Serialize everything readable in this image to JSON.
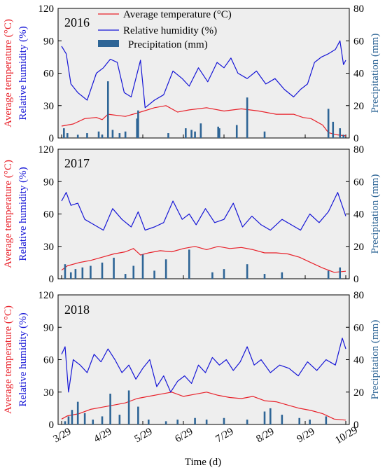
{
  "colors": {
    "temperature": "#e8212a",
    "humidity": "#1515d6",
    "precipitation": "#2e6596",
    "plot_bg": "#eeeeee"
  },
  "axes": {
    "left_label_temp": "Average temperature (°C)",
    "left_label_rh": "Relative humidity (%)",
    "right_label": "Precipitation (mm)",
    "x_label": "Time (d)",
    "x_ticks": [
      "3/29",
      "4/29",
      "5/29",
      "6/29",
      "7/29",
      "8/29",
      "9/29",
      "10/29"
    ],
    "left_ticks": [
      "0",
      "30",
      "60",
      "90",
      "120"
    ],
    "right_ticks": [
      "0",
      "20",
      "40",
      "60",
      "80"
    ]
  },
  "legend": {
    "temperature": "Average temperature (°C)",
    "humidity": "Relative humidity (%)",
    "precipitation": "Precipitation (mm)"
  },
  "chart_data": [
    {
      "type": "line",
      "title": "2016",
      "x_range": [
        "3/29",
        "10/29"
      ],
      "ylim_left": [
        0,
        120
      ],
      "ylim_right": [
        0,
        80
      ],
      "series": [
        {
          "name": "Average temperature (°C)",
          "axis": "left",
          "points": [
            [
              0,
              11
            ],
            [
              10,
              13
            ],
            [
              20,
              18
            ],
            [
              30,
              19
            ],
            [
              35,
              17
            ],
            [
              40,
              22
            ],
            [
              55,
              20
            ],
            [
              65,
              23
            ],
            [
              80,
              28
            ],
            [
              90,
              30
            ],
            [
              100,
              24
            ],
            [
              110,
              26
            ],
            [
              125,
              28
            ],
            [
              140,
              25
            ],
            [
              155,
              27
            ],
            [
              170,
              25
            ],
            [
              185,
              22
            ],
            [
              200,
              22
            ],
            [
              208,
              19
            ],
            [
              215,
              18
            ],
            [
              225,
              12
            ],
            [
              230,
              5
            ],
            [
              237,
              3
            ],
            [
              245,
              2
            ]
          ]
        },
        {
          "name": "Relative humidity (%)",
          "axis": "left",
          "points": [
            [
              0,
              85
            ],
            [
              4,
              78
            ],
            [
              8,
              50
            ],
            [
              14,
              42
            ],
            [
              22,
              35
            ],
            [
              30,
              60
            ],
            [
              36,
              65
            ],
            [
              42,
              73
            ],
            [
              48,
              70
            ],
            [
              54,
              42
            ],
            [
              60,
              38
            ],
            [
              68,
              72
            ],
            [
              72,
              28
            ],
            [
              80,
              35
            ],
            [
              88,
              40
            ],
            [
              96,
              62
            ],
            [
              104,
              55
            ],
            [
              110,
              48
            ],
            [
              118,
              65
            ],
            [
              126,
              52
            ],
            [
              134,
              70
            ],
            [
              140,
              65
            ],
            [
              146,
              74
            ],
            [
              152,
              60
            ],
            [
              160,
              55
            ],
            [
              168,
              62
            ],
            [
              176,
              50
            ],
            [
              184,
              55
            ],
            [
              192,
              45
            ],
            [
              200,
              38
            ],
            [
              206,
              45
            ],
            [
              212,
              50
            ],
            [
              218,
              70
            ],
            [
              224,
              75
            ],
            [
              230,
              78
            ],
            [
              236,
              82
            ],
            [
              240,
              90
            ],
            [
              243,
              68
            ],
            [
              245,
              72
            ]
          ]
        },
        {
          "name": "Precipitation (mm)",
          "axis": "right",
          "type": "bar",
          "points": [
            [
              2,
              6
            ],
            [
              5,
              3
            ],
            [
              14,
              2
            ],
            [
              22,
              3
            ],
            [
              32,
              4
            ],
            [
              35,
              2
            ],
            [
              40,
              35
            ],
            [
              44,
              5
            ],
            [
              50,
              3
            ],
            [
              55,
              4
            ],
            [
              65,
              12
            ],
            [
              66,
              17
            ],
            [
              92,
              3
            ],
            [
              107,
              6
            ],
            [
              112,
              5
            ],
            [
              115,
              4
            ],
            [
              120,
              9
            ],
            [
              135,
              7
            ],
            [
              136,
              6
            ],
            [
              151,
              8
            ],
            [
              160,
              25
            ],
            [
              175,
              4
            ],
            [
              230,
              18
            ],
            [
              234,
              10
            ],
            [
              240,
              6
            ],
            [
              243,
              2
            ]
          ]
        }
      ]
    },
    {
      "type": "line",
      "title": "2017",
      "x_range": [
        "3/29",
        "10/29"
      ],
      "ylim_left": [
        0,
        120
      ],
      "ylim_right": [
        0,
        80
      ],
      "series": [
        {
          "name": "Average temperature (°C)",
          "axis": "left",
          "points": [
            [
              0,
              8
            ],
            [
              5,
              12
            ],
            [
              15,
              15
            ],
            [
              25,
              17
            ],
            [
              35,
              20
            ],
            [
              45,
              23
            ],
            [
              55,
              25
            ],
            [
              62,
              28
            ],
            [
              68,
              22
            ],
            [
              75,
              24
            ],
            [
              85,
              26
            ],
            [
              95,
              25
            ],
            [
              105,
              28
            ],
            [
              115,
              30
            ],
            [
              125,
              27
            ],
            [
              135,
              30
            ],
            [
              145,
              28
            ],
            [
              155,
              29
            ],
            [
              165,
              27
            ],
            [
              175,
              24
            ],
            [
              185,
              24
            ],
            [
              195,
              23
            ],
            [
              205,
              20
            ],
            [
              215,
              15
            ],
            [
              225,
              10
            ],
            [
              235,
              6
            ],
            [
              245,
              7
            ]
          ]
        },
        {
          "name": "Relative humidity (%)",
          "axis": "left",
          "points": [
            [
              0,
              72
            ],
            [
              4,
              80
            ],
            [
              8,
              68
            ],
            [
              14,
              70
            ],
            [
              20,
              55
            ],
            [
              28,
              50
            ],
            [
              36,
              45
            ],
            [
              44,
              65
            ],
            [
              52,
              55
            ],
            [
              60,
              48
            ],
            [
              66,
              62
            ],
            [
              72,
              45
            ],
            [
              80,
              48
            ],
            [
              88,
              52
            ],
            [
              96,
              72
            ],
            [
              104,
              55
            ],
            [
              110,
              60
            ],
            [
              116,
              50
            ],
            [
              124,
              65
            ],
            [
              132,
              52
            ],
            [
              140,
              55
            ],
            [
              148,
              70
            ],
            [
              156,
              48
            ],
            [
              164,
              58
            ],
            [
              172,
              50
            ],
            [
              180,
              45
            ],
            [
              190,
              55
            ],
            [
              198,
              50
            ],
            [
              206,
              45
            ],
            [
              214,
              60
            ],
            [
              222,
              52
            ],
            [
              230,
              62
            ],
            [
              238,
              80
            ],
            [
              245,
              58
            ]
          ]
        },
        {
          "name": "Precipitation (mm)",
          "axis": "right",
          "type": "bar",
          "points": [
            [
              3,
              9
            ],
            [
              8,
              4
            ],
            [
              12,
              6
            ],
            [
              18,
              7
            ],
            [
              25,
              8
            ],
            [
              35,
              10
            ],
            [
              45,
              13
            ],
            [
              55,
              3
            ],
            [
              62,
              8
            ],
            [
              70,
              15
            ],
            [
              80,
              5
            ],
            [
              90,
              12
            ],
            [
              110,
              18
            ],
            [
              130,
              4
            ],
            [
              140,
              6
            ],
            [
              160,
              9
            ],
            [
              175,
              3
            ],
            [
              190,
              4
            ],
            [
              230,
              5
            ],
            [
              240,
              7
            ]
          ]
        }
      ]
    },
    {
      "type": "line",
      "title": "2018",
      "x_range": [
        "3/29",
        "10/29"
      ],
      "ylim_left": [
        0,
        120
      ],
      "ylim_right": [
        0,
        80
      ],
      "series": [
        {
          "name": "Average temperature (°C)",
          "axis": "left",
          "points": [
            [
              0,
              5
            ],
            [
              5,
              8
            ],
            [
              15,
              10
            ],
            [
              25,
              14
            ],
            [
              35,
              16
            ],
            [
              45,
              18
            ],
            [
              55,
              20
            ],
            [
              65,
              24
            ],
            [
              75,
              26
            ],
            [
              85,
              28
            ],
            [
              95,
              30
            ],
            [
              105,
              26
            ],
            [
              115,
              28
            ],
            [
              125,
              30
            ],
            [
              135,
              27
            ],
            [
              145,
              25
            ],
            [
              155,
              24
            ],
            [
              165,
              26
            ],
            [
              175,
              22
            ],
            [
              185,
              21
            ],
            [
              195,
              18
            ],
            [
              205,
              15
            ],
            [
              215,
              13
            ],
            [
              225,
              10
            ],
            [
              235,
              5
            ],
            [
              245,
              4
            ]
          ]
        },
        {
          "name": "Relative humidity (%)",
          "axis": "left",
          "points": [
            [
              0,
              65
            ],
            [
              3,
              72
            ],
            [
              6,
              30
            ],
            [
              10,
              60
            ],
            [
              16,
              55
            ],
            [
              22,
              48
            ],
            [
              28,
              65
            ],
            [
              34,
              58
            ],
            [
              40,
              70
            ],
            [
              46,
              60
            ],
            [
              52,
              48
            ],
            [
              58,
              55
            ],
            [
              64,
              42
            ],
            [
              70,
              52
            ],
            [
              76,
              60
            ],
            [
              82,
              35
            ],
            [
              88,
              45
            ],
            [
              94,
              30
            ],
            [
              100,
              40
            ],
            [
              106,
              45
            ],
            [
              112,
              38
            ],
            [
              118,
              55
            ],
            [
              124,
              48
            ],
            [
              130,
              62
            ],
            [
              136,
              55
            ],
            [
              142,
              60
            ],
            [
              148,
              50
            ],
            [
              154,
              58
            ],
            [
              160,
              72
            ],
            [
              166,
              55
            ],
            [
              172,
              60
            ],
            [
              180,
              48
            ],
            [
              188,
              55
            ],
            [
              196,
              52
            ],
            [
              204,
              45
            ],
            [
              212,
              58
            ],
            [
              220,
              50
            ],
            [
              228,
              60
            ],
            [
              236,
              55
            ],
            [
              242,
              80
            ],
            [
              245,
              70
            ]
          ]
        },
        {
          "name": "Precipitation (mm)",
          "axis": "right",
          "type": "bar",
          "points": [
            [
              3,
              2
            ],
            [
              6,
              5
            ],
            [
              9,
              9
            ],
            [
              14,
              14
            ],
            [
              20,
              7
            ],
            [
              27,
              3
            ],
            [
              35,
              5
            ],
            [
              42,
              19
            ],
            [
              50,
              6
            ],
            [
              58,
              21
            ],
            [
              66,
              11
            ],
            [
              75,
              3
            ],
            [
              90,
              2
            ],
            [
              100,
              3
            ],
            [
              115,
              4
            ],
            [
              125,
              3
            ],
            [
              140,
              4
            ],
            [
              160,
              3
            ],
            [
              175,
              8
            ],
            [
              180,
              10
            ],
            [
              190,
              6
            ],
            [
              205,
              4
            ],
            [
              214,
              3
            ],
            [
              228,
              5
            ]
          ]
        }
      ]
    }
  ]
}
